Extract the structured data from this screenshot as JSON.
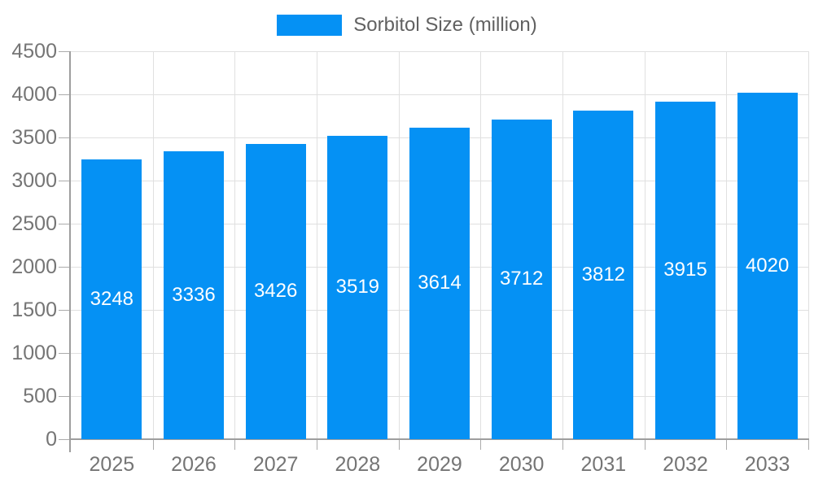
{
  "chart_data": {
    "type": "bar",
    "title": "Sorbitol Size (million)",
    "legend_label": "Sorbitol Size (million)",
    "legend_position": "top-center",
    "categories": [
      "2025",
      "2026",
      "2027",
      "2028",
      "2029",
      "2030",
      "2031",
      "2032",
      "2033"
    ],
    "values": [
      3248,
      3336,
      3426,
      3519,
      3614,
      3712,
      3812,
      3915,
      4020
    ],
    "value_labels": [
      "3248",
      "3336",
      "3426",
      "3519",
      "3614",
      "3712",
      "3812",
      "3915",
      "4020"
    ],
    "y_tick_labels": [
      "0",
      "500",
      "1000",
      "1500",
      "2000",
      "2500",
      "3000",
      "3500",
      "4000",
      "4500"
    ],
    "xlabel": "",
    "ylabel": "",
    "ylim": [
      0,
      4500
    ],
    "ytick_step": 500,
    "grid": true,
    "colors": {
      "bar": "#0591F4",
      "bar_label": "#ffffff",
      "axis_text": "#757575",
      "legend_text": "#616161",
      "grid_line": "#e0e0e0",
      "axis_line": "#9e9e9e",
      "tick": "#ababab",
      "background": "#ffffff"
    }
  }
}
